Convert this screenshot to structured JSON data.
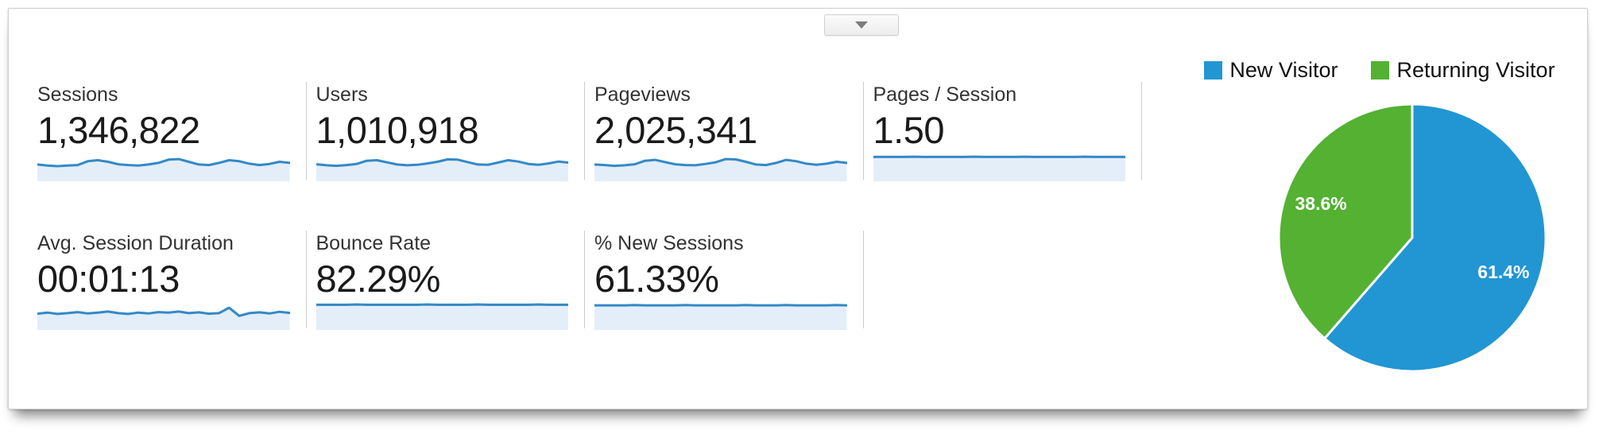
{
  "panel": {
    "collapse_button": {
      "icon": "chevron-down"
    }
  },
  "metrics": {
    "spark_line_color": "#3489c8",
    "spark_fill_color": "#e3eef8",
    "rows": [
      [
        {
          "id": "sessions",
          "label": "Sessions",
          "value": "1,346,822",
          "spark": [
            0.62,
            0.58,
            0.56,
            0.58,
            0.6,
            0.74,
            0.78,
            0.72,
            0.63,
            0.6,
            0.58,
            0.62,
            0.68,
            0.8,
            0.82,
            0.72,
            0.62,
            0.6,
            0.68,
            0.78,
            0.74,
            0.65,
            0.6,
            0.64,
            0.72,
            0.68
          ]
        },
        {
          "id": "users",
          "label": "Users",
          "value": "1,010,918",
          "spark": [
            0.63,
            0.59,
            0.57,
            0.6,
            0.64,
            0.76,
            0.78,
            0.7,
            0.62,
            0.59,
            0.61,
            0.66,
            0.72,
            0.81,
            0.8,
            0.71,
            0.62,
            0.61,
            0.69,
            0.78,
            0.73,
            0.64,
            0.61,
            0.66,
            0.73,
            0.69
          ]
        },
        {
          "id": "pageviews",
          "label": "Pageviews",
          "value": "2,025,341",
          "spark": [
            0.62,
            0.6,
            0.57,
            0.59,
            0.63,
            0.76,
            0.79,
            0.71,
            0.63,
            0.6,
            0.59,
            0.64,
            0.7,
            0.82,
            0.81,
            0.72,
            0.62,
            0.6,
            0.68,
            0.79,
            0.74,
            0.65,
            0.61,
            0.65,
            0.72,
            0.68
          ]
        },
        {
          "id": "pages-per-session",
          "label": "Pages / Session",
          "value": "1.50",
          "spark": [
            0.9,
            0.9,
            0.9,
            0.9,
            0.91,
            0.9,
            0.9,
            0.9,
            0.9,
            0.9,
            0.91,
            0.9,
            0.9,
            0.9,
            0.9,
            0.91,
            0.9,
            0.9,
            0.9,
            0.9,
            0.9,
            0.91,
            0.9,
            0.9,
            0.9,
            0.9
          ]
        }
      ],
      [
        {
          "id": "avg-session-duration",
          "label": "Avg. Session Duration",
          "value": "00:01:13",
          "spark": [
            0.6,
            0.64,
            0.59,
            0.62,
            0.66,
            0.61,
            0.64,
            0.68,
            0.62,
            0.59,
            0.64,
            0.61,
            0.66,
            0.64,
            0.68,
            0.62,
            0.65,
            0.6,
            0.62,
            0.82,
            0.52,
            0.62,
            0.65,
            0.61,
            0.67,
            0.63
          ]
        },
        {
          "id": "bounce-rate",
          "label": "Bounce Rate",
          "value": "82.29%",
          "spark": [
            0.93,
            0.93,
            0.93,
            0.93,
            0.94,
            0.93,
            0.93,
            0.93,
            0.93,
            0.93,
            0.93,
            0.94,
            0.93,
            0.93,
            0.93,
            0.93,
            0.94,
            0.93,
            0.93,
            0.93,
            0.93,
            0.93,
            0.94,
            0.93,
            0.93,
            0.93
          ]
        },
        {
          "id": "percent-new-sessions",
          "label": "% New Sessions",
          "value": "61.33%",
          "spark": [
            0.91,
            0.91,
            0.91,
            0.91,
            0.92,
            0.91,
            0.91,
            0.91,
            0.91,
            0.92,
            0.91,
            0.91,
            0.91,
            0.91,
            0.91,
            0.92,
            0.91,
            0.91,
            0.91,
            0.92,
            0.91,
            0.91,
            0.91,
            0.91,
            0.92,
            0.91
          ]
        }
      ]
    ]
  },
  "chart_data": {
    "type": "pie",
    "legend_position": "top",
    "start_angle_deg": 0,
    "direction": "clockwise",
    "slices": [
      {
        "label": "New Visitor",
        "value": 61.4,
        "data_label": "61.4%",
        "color": "#2196d3"
      },
      {
        "label": "Returning Visitor",
        "value": 38.6,
        "data_label": "38.6%",
        "color": "#54b132"
      }
    ]
  },
  "colors": {
    "divider": "#cbcbcb",
    "metric_label_text": "#333333",
    "metric_value_text": "#1a1a1a",
    "spark_line": "#3489c8",
    "spark_fill": "#e3eef8",
    "new_visitor_blue": "#2196d3",
    "returning_visitor_green": "#54b132"
  }
}
